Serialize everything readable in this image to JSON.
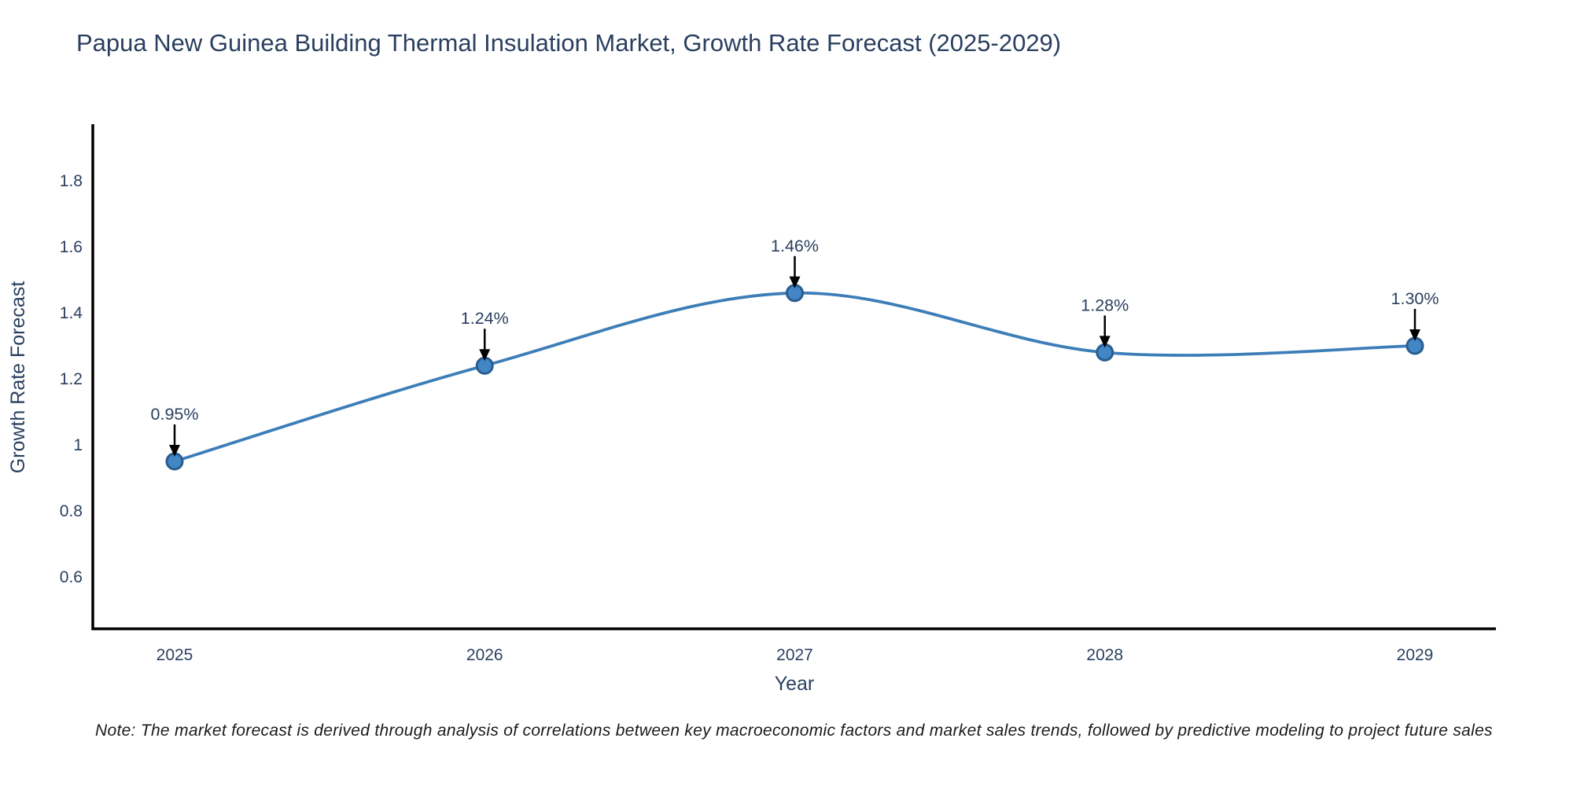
{
  "title": "Papua New Guinea Building Thermal Insulation Market, Growth Rate Forecast (2025-2029)",
  "note": "Note: The market forecast is derived through analysis of correlations between key macroeconomic factors and market sales trends, followed by predictive modeling to project future sales",
  "chart_data": {
    "type": "line",
    "title": "Papua New Guinea Building Thermal Insulation Market, Growth Rate Forecast (2025-2029)",
    "xlabel": "Year",
    "ylabel": "Growth Rate Forecast",
    "categories": [
      "2025",
      "2026",
      "2027",
      "2028",
      "2029"
    ],
    "series": [
      {
        "name": "Growth Rate Forecast",
        "values": [
          0.95,
          1.24,
          1.46,
          1.28,
          1.3
        ],
        "point_labels": [
          "0.95%",
          "1.24%",
          "1.46%",
          "1.28%",
          "1.30%"
        ]
      }
    ],
    "line_shape": "spline",
    "markers": true,
    "grid": false,
    "legend": "none",
    "yticks": [
      0.6,
      0.8,
      1,
      1.2,
      1.4,
      1.6,
      1.8
    ],
    "ylim": [
      0.44,
      1.98
    ],
    "xlim_padding_fraction": 0.27,
    "colors": {
      "line": "#3d7eb8",
      "marker_fill": "#4286c5",
      "marker_edge": "#2a5d8f",
      "text": "#2a3f5f",
      "axis": "#000000",
      "arrow": "#000000",
      "note_text": "#1a1a1a"
    }
  }
}
